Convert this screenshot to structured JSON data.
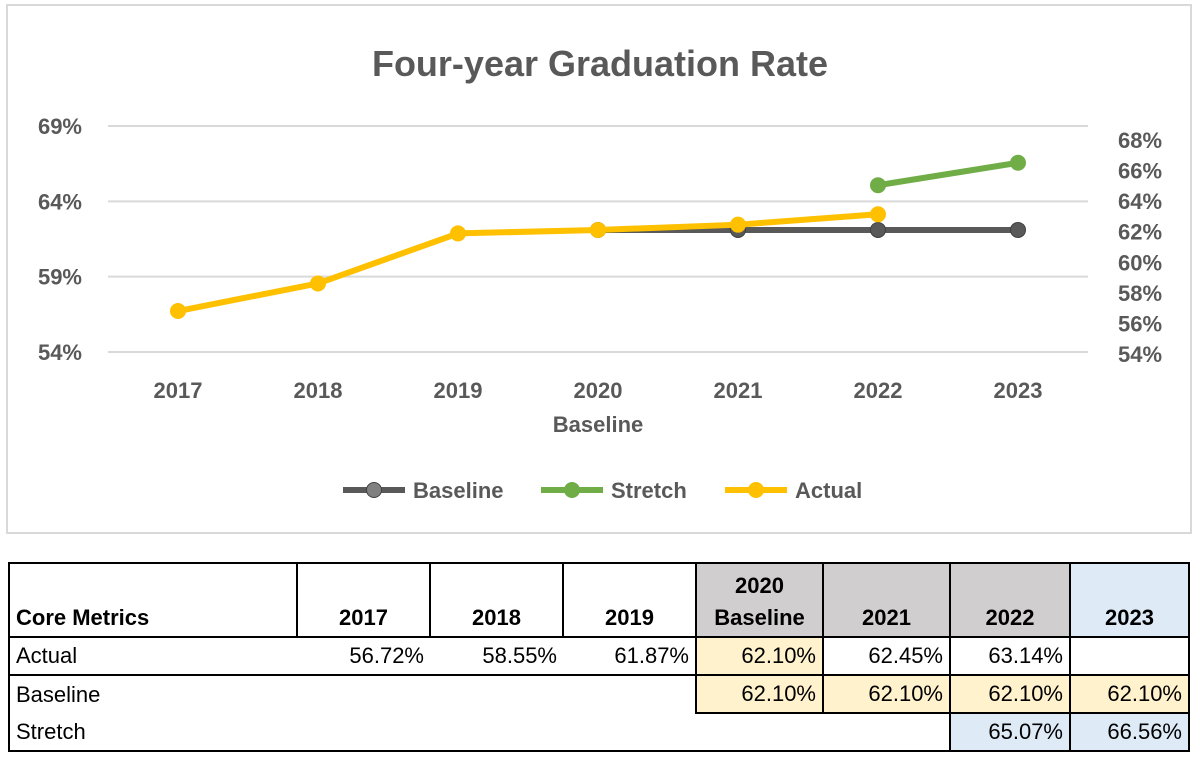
{
  "chart_data": {
    "type": "line",
    "title": "Four-year Graduation Rate",
    "categories": [
      "2017",
      "2018",
      "2019",
      "2020",
      "2021",
      "2022",
      "2023"
    ],
    "category_sublabels": [
      "",
      "",
      "",
      "Baseline",
      "",
      "",
      ""
    ],
    "series": [
      {
        "name": "Baseline",
        "color": "#595959",
        "values": [
          null,
          null,
          null,
          62.1,
          62.1,
          62.1,
          62.1
        ]
      },
      {
        "name": "Stretch",
        "color": "#70ad47",
        "values": [
          null,
          null,
          null,
          null,
          null,
          65.07,
          66.56
        ]
      },
      {
        "name": "Actual",
        "color": "#ffc000",
        "values": [
          56.72,
          58.55,
          61.87,
          62.1,
          62.45,
          63.14,
          null
        ]
      }
    ],
    "y_left": {
      "ticks": [
        "54%",
        "59%",
        "64%",
        "69%"
      ],
      "tick_values": [
        54,
        59,
        64,
        69
      ],
      "ylim": [
        54,
        69
      ]
    },
    "y_right": {
      "ticks": [
        "54%",
        "56%",
        "58%",
        "60%",
        "62%",
        "64%",
        "66%",
        "68%"
      ],
      "tick_values": [
        54,
        56,
        58,
        60,
        62,
        64,
        66,
        68
      ]
    },
    "legend_position": "bottom",
    "grid": true
  },
  "table": {
    "header": {
      "label": "Core Metrics",
      "years": [
        "2017",
        "2018",
        "2019",
        "2020",
        "2021",
        "2022",
        "2023"
      ],
      "year_sublabels": [
        "",
        "",
        "",
        "Baseline",
        "",
        "",
        ""
      ]
    },
    "rows": [
      {
        "label": "Actual",
        "values": [
          "56.72%",
          "58.55%",
          "61.87%",
          "62.10%",
          "62.45%",
          "63.14%",
          ""
        ]
      },
      {
        "label": "Baseline",
        "values": [
          "",
          "",
          "",
          "62.10%",
          "62.10%",
          "62.10%",
          "62.10%"
        ]
      },
      {
        "label": "Stretch",
        "values": [
          "",
          "",
          "",
          "",
          "",
          "65.07%",
          "66.56%"
        ]
      }
    ],
    "colors": {
      "header_gray": "#d0cece",
      "header_blue": "#deebf7",
      "cell_tan": "#fff2cc",
      "cell_blue": "#deebf7"
    }
  }
}
